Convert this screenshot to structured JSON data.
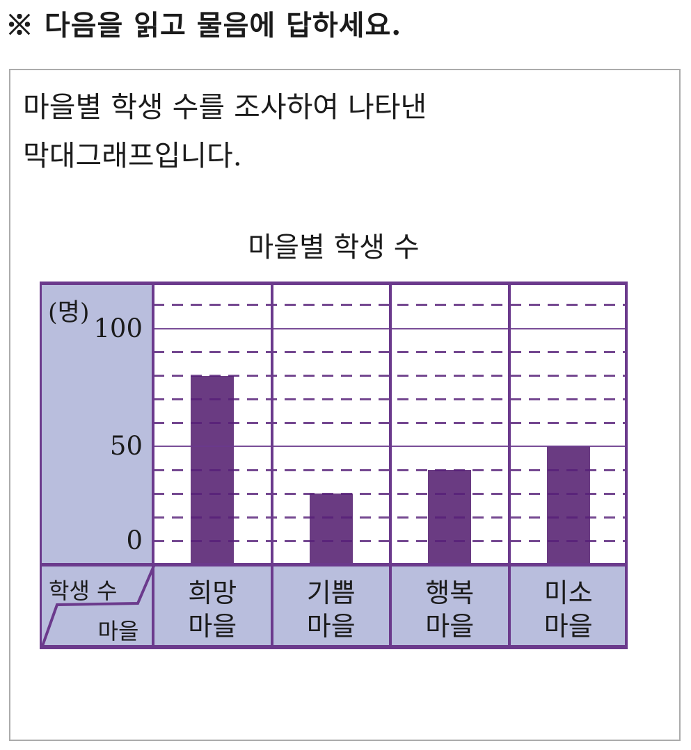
{
  "heading": "※ 다음을 읽고 물음에 답하세요.",
  "description": {
    "line1": "마을별 학생 수를 조사하여 나타낸",
    "line2": "막대그래프입니다."
  },
  "chart_data": {
    "type": "bar",
    "title": "마을별 학생 수",
    "unit_label": "(명)",
    "y_ticks": [
      100,
      50,
      0
    ],
    "ylim": [
      0,
      120
    ],
    "minor_grid_step": 10,
    "grid": "solid line every 50, dashed line every 10",
    "legend_position": "none",
    "categories": [
      "희망 마을",
      "기쁨 마을",
      "행복 마을",
      "미소 마을"
    ],
    "values": [
      80,
      30,
      40,
      50
    ],
    "corner_header": {
      "value_axis": "학생 수",
      "category_axis": "마을"
    },
    "colors": {
      "bar": "#6a3b82",
      "frame": "#6b3a8c",
      "panel": "#b9bedd",
      "grid_dash": "#561f78",
      "text": "#1b1b1b"
    }
  }
}
